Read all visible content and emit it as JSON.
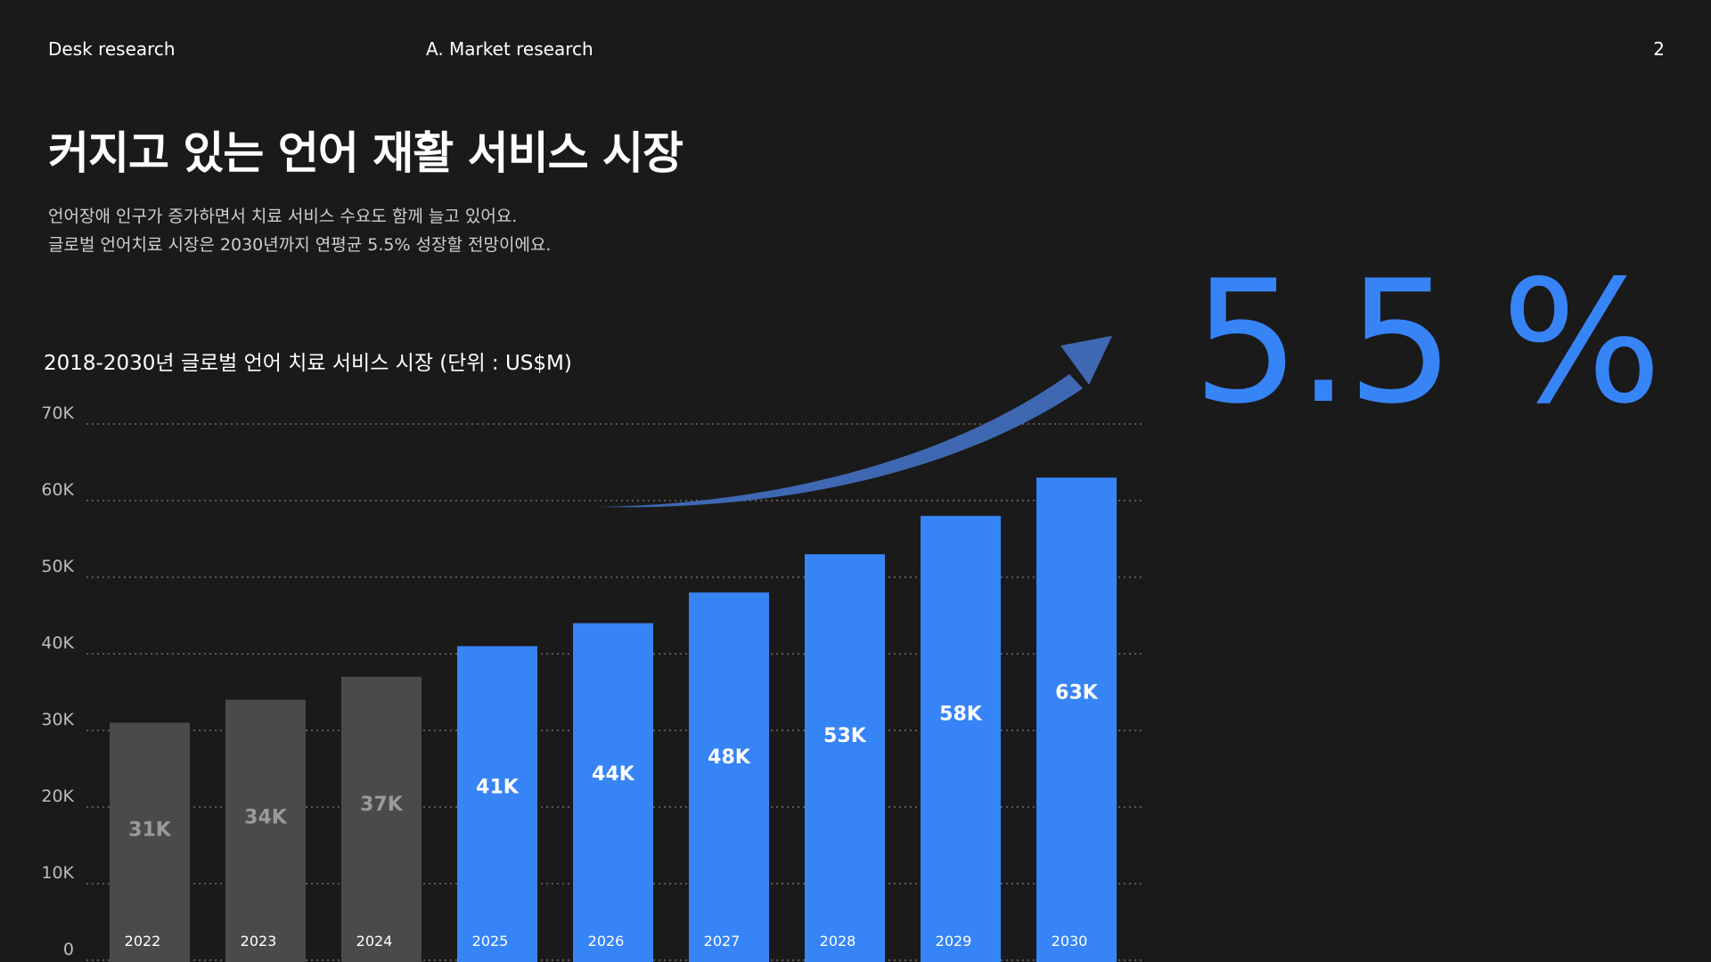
{
  "header": {
    "left_label": "Desk research",
    "section_label": "A. Market research",
    "page_number": "2"
  },
  "title": "커지고 있는 언어 재활 서비스 시장",
  "description": {
    "line1": "언어장애 인구가 증가하면서 치료 서비스 수요도 함께 늘고 있어요.",
    "line2": "글로벌 언어치료 시장은 2030년까지 연평균 5.5% 성장할 전망이에요."
  },
  "highlight": {
    "value": "5.5 %",
    "color": "#3784f6"
  },
  "colors": {
    "background": "#1a1a1a",
    "past_bar": "#4a4a4a",
    "forecast_bar": "#3784f6",
    "arrow": "#3f68b3",
    "grid": "#6e6e6e"
  },
  "chart_data": {
    "type": "bar",
    "title": "2018-2030년 글로벌 언어 치료 서비스 시장 (단위 : US$M)",
    "categories": [
      "2022",
      "2023",
      "2024",
      "2025",
      "2026",
      "2027",
      "2028",
      "2029",
      "2030"
    ],
    "values": [
      31,
      34,
      37,
      41,
      44,
      48,
      53,
      58,
      63
    ],
    "data_labels": [
      "31K",
      "34K",
      "37K",
      "41K",
      "44K",
      "48K",
      "53K",
      "58K",
      "63K"
    ],
    "kind": [
      "past",
      "past",
      "past",
      "forecast",
      "forecast",
      "forecast",
      "forecast",
      "forecast",
      "forecast"
    ],
    "y_ticks": [
      0,
      10,
      20,
      30,
      40,
      50,
      60,
      70
    ],
    "y_tick_labels": [
      "0",
      "10K",
      "20K",
      "30K",
      "40K",
      "50K",
      "60K",
      "70K"
    ],
    "ylim": [
      0,
      70
    ],
    "grid": true,
    "grid_style": "dotted",
    "xlabel": "",
    "ylabel": ""
  }
}
